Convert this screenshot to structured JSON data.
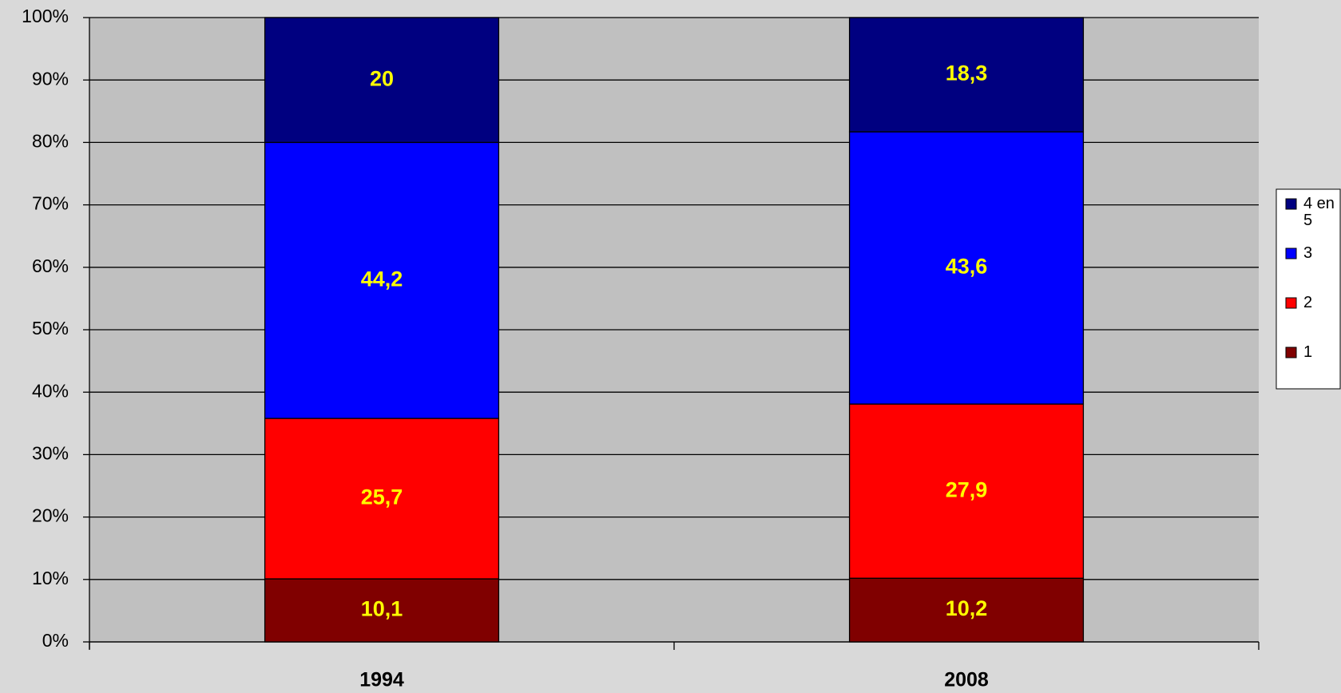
{
  "chart_data": {
    "type": "bar",
    "stacked": true,
    "categories": [
      "1994",
      "2008"
    ],
    "series": [
      {
        "name": "1",
        "color": "#800000",
        "values": [
          10.1,
          10.2
        ],
        "value_labels": [
          "10,1",
          "10,2"
        ]
      },
      {
        "name": "2",
        "color": "#ff0000",
        "values": [
          25.7,
          27.9
        ],
        "value_labels": [
          "25,7",
          "27,9"
        ]
      },
      {
        "name": "3",
        "color": "#0000ff",
        "values": [
          44.2,
          43.6
        ],
        "value_labels": [
          "44,2",
          "43,6"
        ]
      },
      {
        "name": "4 en 5",
        "color": "#000080",
        "values": [
          20,
          18.3
        ],
        "value_labels": [
          "20",
          "18,3"
        ]
      }
    ],
    "ylim": [
      0,
      100
    ],
    "yticks": [
      {
        "value": 0,
        "label": "0%"
      },
      {
        "value": 10,
        "label": "10%"
      },
      {
        "value": 20,
        "label": "20%"
      },
      {
        "value": 30,
        "label": "30%"
      },
      {
        "value": 40,
        "label": "40%"
      },
      {
        "value": 50,
        "label": "50%"
      },
      {
        "value": 60,
        "label": "60%"
      },
      {
        "value": 70,
        "label": "70%"
      },
      {
        "value": 80,
        "label": "80%"
      },
      {
        "value": 90,
        "label": "90%"
      },
      {
        "value": 100,
        "label": "100%"
      }
    ],
    "grid": true,
    "legend": "right",
    "label_color": "#ffff00"
  }
}
